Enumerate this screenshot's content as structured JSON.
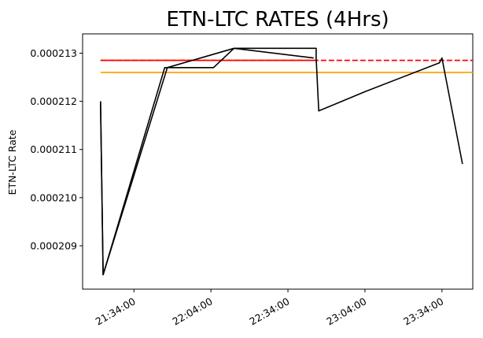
{
  "chart_data": {
    "type": "line",
    "title": "ETN-LTC RATES (4Hrs)",
    "xlabel": "",
    "ylabel": "ETN-LTC Rate",
    "xlim": [
      "21:14:00",
      "23:46:00"
    ],
    "ylim": [
      0.0002081,
      0.0002134
    ],
    "x_ticks": [
      "21:34:00",
      "22:04:00",
      "22:34:00",
      "23:04:00",
      "23:34:00"
    ],
    "y_ticks": [
      "0.000209",
      "0.000210",
      "0.000211",
      "0.000212",
      "0.000213"
    ],
    "grid": false,
    "legend": "none",
    "series": [
      {
        "color": "#000000",
        "style": "solid",
        "x": [
          "21:21:00",
          "21:22:00",
          "21:22:00",
          "21:46:00",
          "21:47:00",
          "22:05:00",
          "22:13:00",
          "22:14:00",
          "22:45:00",
          "22:45:00",
          "22:46:00",
          "23:04:00",
          "23:33:00",
          "23:34:00",
          "23:42:00"
        ],
        "values": [
          0.000212,
          0.0002084,
          0.0002084,
          0.0002127,
          0.0002127,
          0.0002127,
          0.0002131,
          0.0002131,
          0.0002131,
          0.0002129,
          0.0002118,
          0.0002122,
          0.0002128,
          0.0002129,
          0.0002107
        ]
      },
      {
        "color": "#000000",
        "style": "solid",
        "x": [
          "21:21:00",
          "21:22:00",
          "21:47:00",
          "22:13:00",
          "22:44:00"
        ],
        "values": [
          0.000212,
          0.0002084,
          0.0002127,
          0.0002131,
          0.0002129
        ]
      }
    ],
    "reference_lines": [
      {
        "color": "#ff0000",
        "style": "dashed",
        "y": 0.00021285,
        "x_start": "21:21:00",
        "x_end": "23:46:00"
      },
      {
        "color": "#ff0000",
        "style": "solid",
        "y": 0.00021285,
        "x_start": "21:21:00",
        "x_end": "22:44:00"
      },
      {
        "color": "#ffa500",
        "style": "solid",
        "y": 0.0002126,
        "x_start": "21:21:00",
        "x_end": "23:46:00"
      }
    ]
  }
}
